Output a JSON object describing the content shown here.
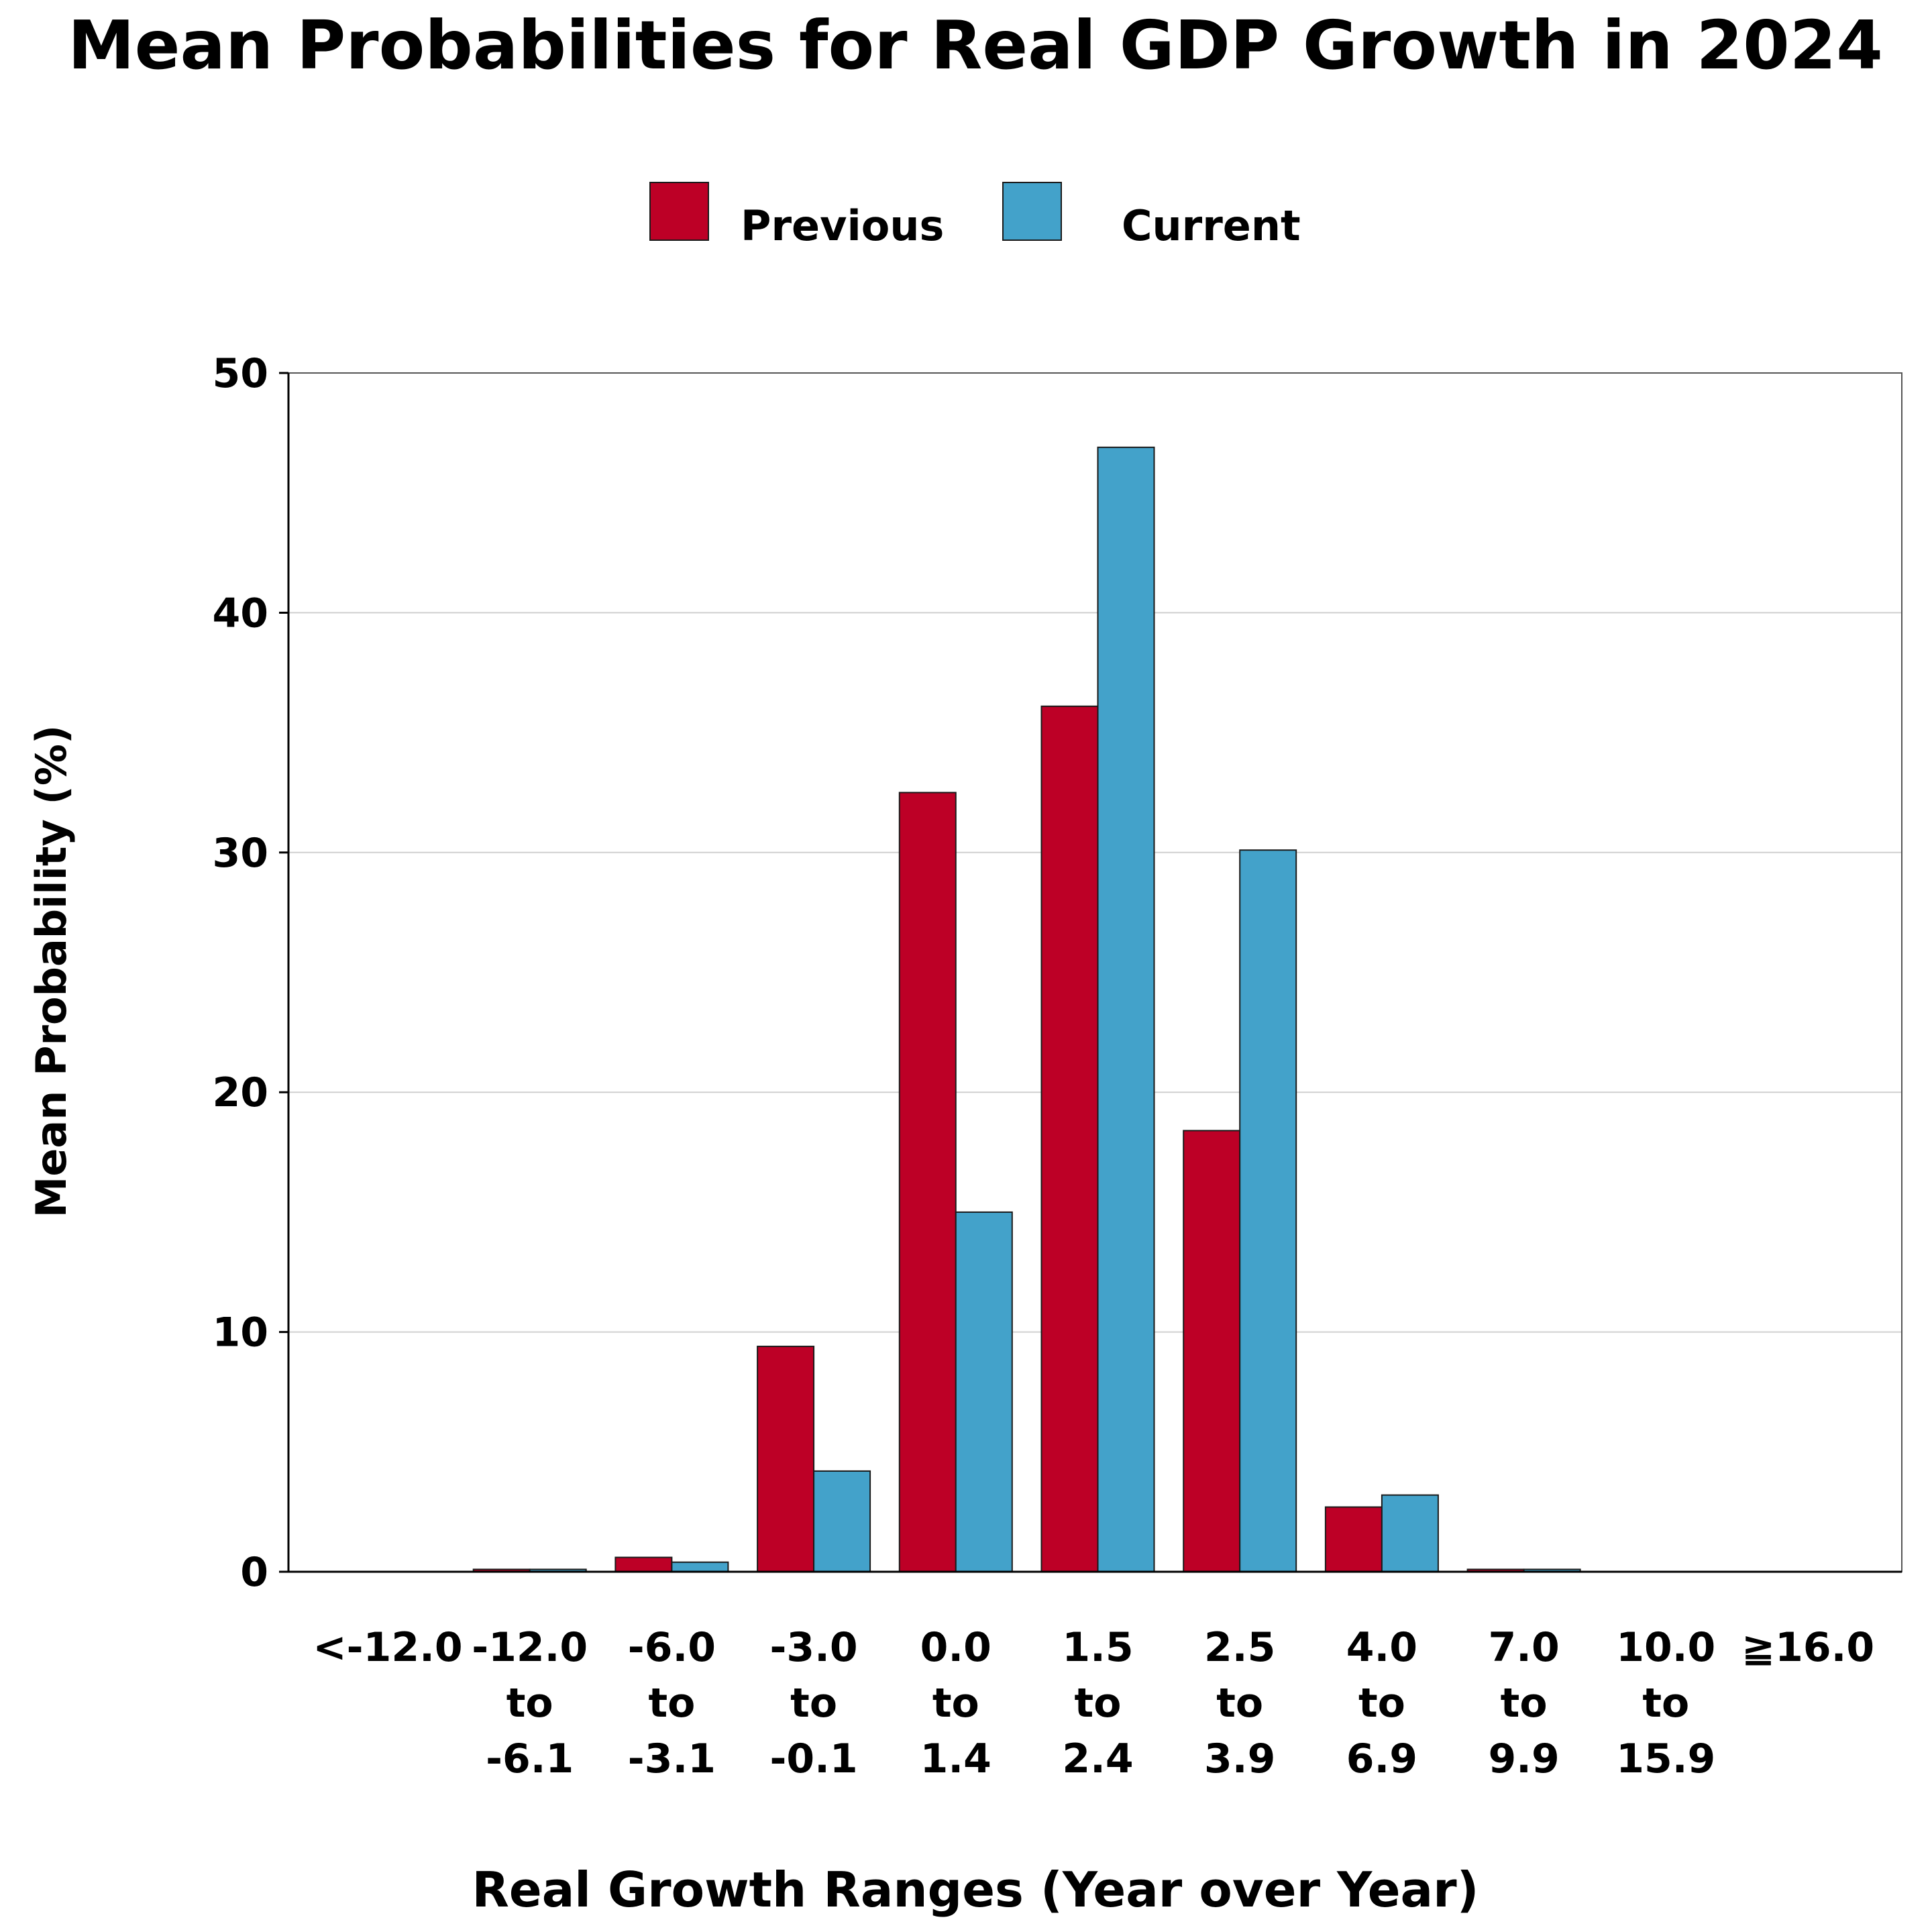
{
  "chart_data": {
    "type": "bar",
    "title": "Mean Probabilities for Real GDP Growth in 2024",
    "xlabel": "Real Growth Ranges (Year over Year)",
    "ylabel": "Mean Probability (%)",
    "ylim": [
      0,
      50
    ],
    "yticks": [
      0,
      10,
      20,
      30,
      40,
      50
    ],
    "grid": true,
    "legend_position": "top-center",
    "categories": [
      [
        "<-12.0"
      ],
      [
        "-12.0",
        "to",
        "-6.1"
      ],
      [
        "-6.0",
        "to",
        "-3.1"
      ],
      [
        "-3.0",
        "to",
        "-0.1"
      ],
      [
        "0.0",
        "to",
        "1.4"
      ],
      [
        "1.5",
        "to",
        "2.4"
      ],
      [
        "2.5",
        "to",
        "3.9"
      ],
      [
        "4.0",
        "to",
        "6.9"
      ],
      [
        "7.0",
        "to",
        "9.9"
      ],
      [
        "10.0",
        "to",
        "15.9"
      ],
      [
        "≧16.0"
      ]
    ],
    "series": [
      {
        "name": "Previous",
        "color": "#bd0026",
        "values": [
          0.0,
          0.1,
          0.6,
          9.4,
          32.5,
          36.1,
          18.4,
          2.7,
          0.1,
          0.0,
          0.0
        ]
      },
      {
        "name": "Current",
        "color": "#43a2ca",
        "values": [
          0.0,
          0.1,
          0.4,
          4.2,
          15.0,
          46.9,
          30.1,
          3.2,
          0.1,
          0.0,
          0.0
        ]
      }
    ]
  }
}
